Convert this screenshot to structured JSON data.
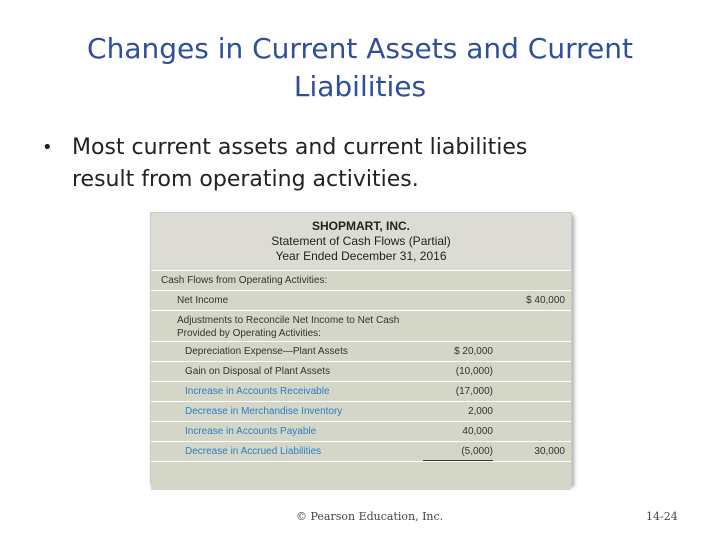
{
  "slide": {
    "title_line1": "Changes in Current Assets and Current",
    "title_line2": "Liabilities",
    "bullet_marker": "•",
    "bullet_line1": "Most current assets and current liabilities",
    "bullet_line2": "result from operating activities."
  },
  "statement": {
    "company": "SHOPMART, INC.",
    "name": "Statement of Cash Flows (Partial)",
    "period": "Year Ended December 31, 2016",
    "rows": [
      {
        "label": "Cash Flows from Operating Activities:",
        "col1": "",
        "col2": ""
      },
      {
        "label": "Net Income",
        "col1": "",
        "col2": "$ 40,000"
      },
      {
        "label": "Adjustments to Reconcile Net Income to Net Cash",
        "label2": "Provided by Operating Activities:",
        "col1": "",
        "col2": ""
      },
      {
        "label": "Depreciation Expense—Plant Assets",
        "col1": "$ 20,000",
        "col2": ""
      },
      {
        "label": "Gain on Disposal of Plant Assets",
        "col1": "(10,000)",
        "col2": ""
      },
      {
        "label": "Increase in Accounts Receivable",
        "col1": "(17,000)",
        "col2": ""
      },
      {
        "label": "Decrease in Merchandise Inventory",
        "col1": "2,000",
        "col2": ""
      },
      {
        "label": "Increase in Accounts Payable",
        "col1": "40,000",
        "col2": ""
      },
      {
        "label": "Decrease in Accrued Liabilities",
        "col1": "(5,000)",
        "col2": "30,000"
      }
    ]
  },
  "footer": {
    "copyright": "© Pearson Education, Inc.",
    "page": "14-24"
  },
  "colors": {
    "title": "#2f4f9a",
    "highlight_label": "#2b7fc4",
    "header_bg": "#dcdcd4",
    "row_bg": "#d4d6c8"
  }
}
